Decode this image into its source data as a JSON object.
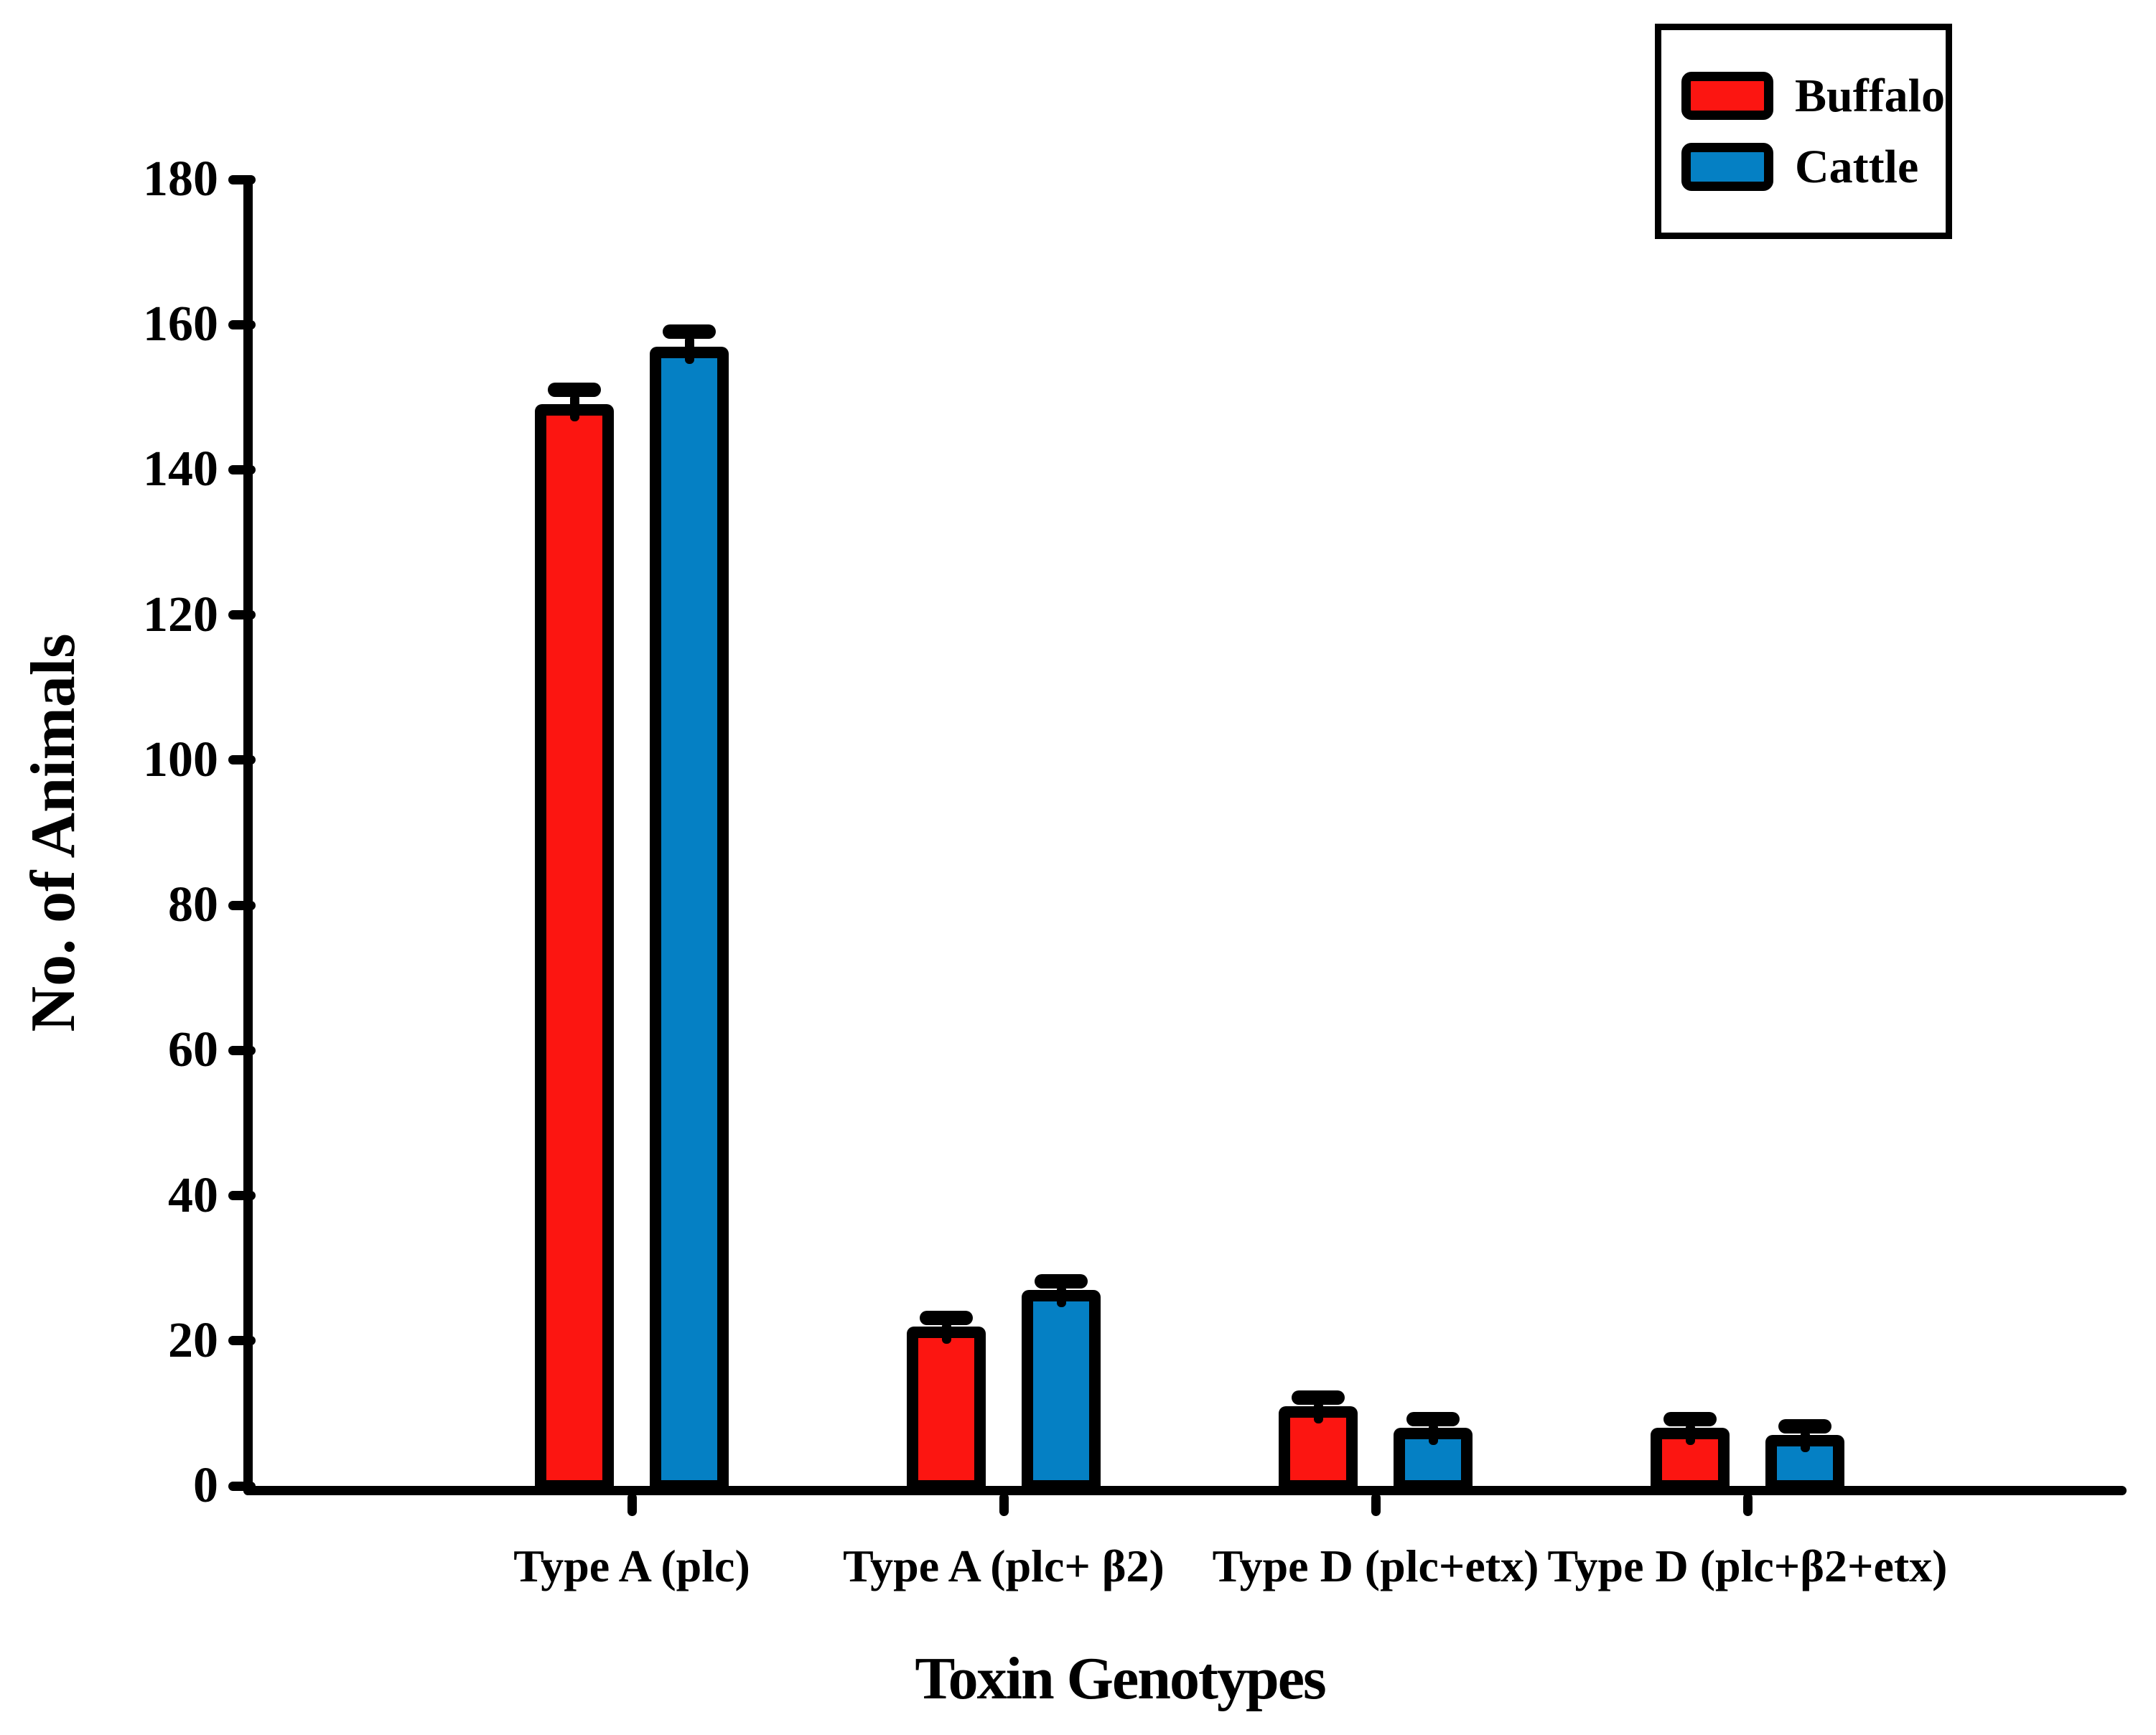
{
  "chart_data": {
    "type": "bar",
    "title": "",
    "xlabel": "Toxin Genotypes",
    "ylabel": "No. of Animals",
    "ylim": [
      0,
      180
    ],
    "ytick_step": 20,
    "yticks": [
      0,
      20,
      40,
      60,
      80,
      100,
      120,
      140,
      160,
      180
    ],
    "grid": false,
    "legend_position": "top-right",
    "categories": [
      "Type A (plc)",
      "Type A (plc+ β2)",
      "Type D (plc+etx)",
      "Type D (plc+β2+etx)"
    ],
    "series": [
      {
        "name": "Buffalo",
        "color": "#fc1511",
        "values": [
          149,
          22,
          11,
          8
        ],
        "errors": [
          2,
          1,
          1,
          0.8
        ]
      },
      {
        "name": "Cattle",
        "color": "#0580c4",
        "values": [
          157,
          27,
          8,
          7
        ],
        "errors": [
          2,
          1,
          0.8,
          0.7
        ]
      }
    ],
    "axis_color": "#000000",
    "background_color": "#ffffff"
  },
  "legend": {
    "items": [
      {
        "label": "Buffalo",
        "color": "#fc1511"
      },
      {
        "label": "Cattle",
        "color": "#0580c4"
      }
    ]
  }
}
